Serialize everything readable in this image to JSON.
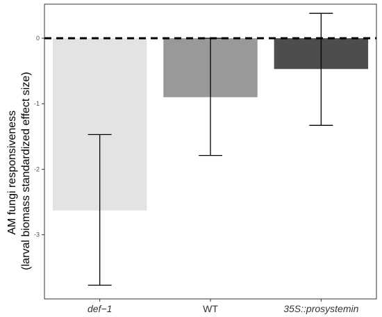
{
  "chart_data": {
    "type": "bar",
    "title": "",
    "xlabel": "",
    "ylabel_lines": [
      "AM fungi responsiveness",
      "(larval biomass standardized effect size)"
    ],
    "categories": [
      "def−1",
      "WT",
      "35S::prosystemin"
    ],
    "italic_categories": [
      true,
      false,
      true
    ],
    "values": [
      -2.63,
      -0.9,
      -0.47
    ],
    "error_low": [
      -3.77,
      -1.79,
      -1.33
    ],
    "error_high": [
      -1.47,
      0.0,
      0.38
    ],
    "bar_colors": [
      "#e3e3e3",
      "#999999",
      "#4d4d4d"
    ],
    "yticks": [
      0,
      -1,
      -2,
      -3
    ],
    "ytick_labels": [
      "0",
      "-1",
      "-2",
      "-3"
    ],
    "ylim": [
      -3.98,
      0.52
    ],
    "reference_line": 0,
    "reference_line_style": "dashed",
    "grid": false,
    "legend": "none"
  }
}
